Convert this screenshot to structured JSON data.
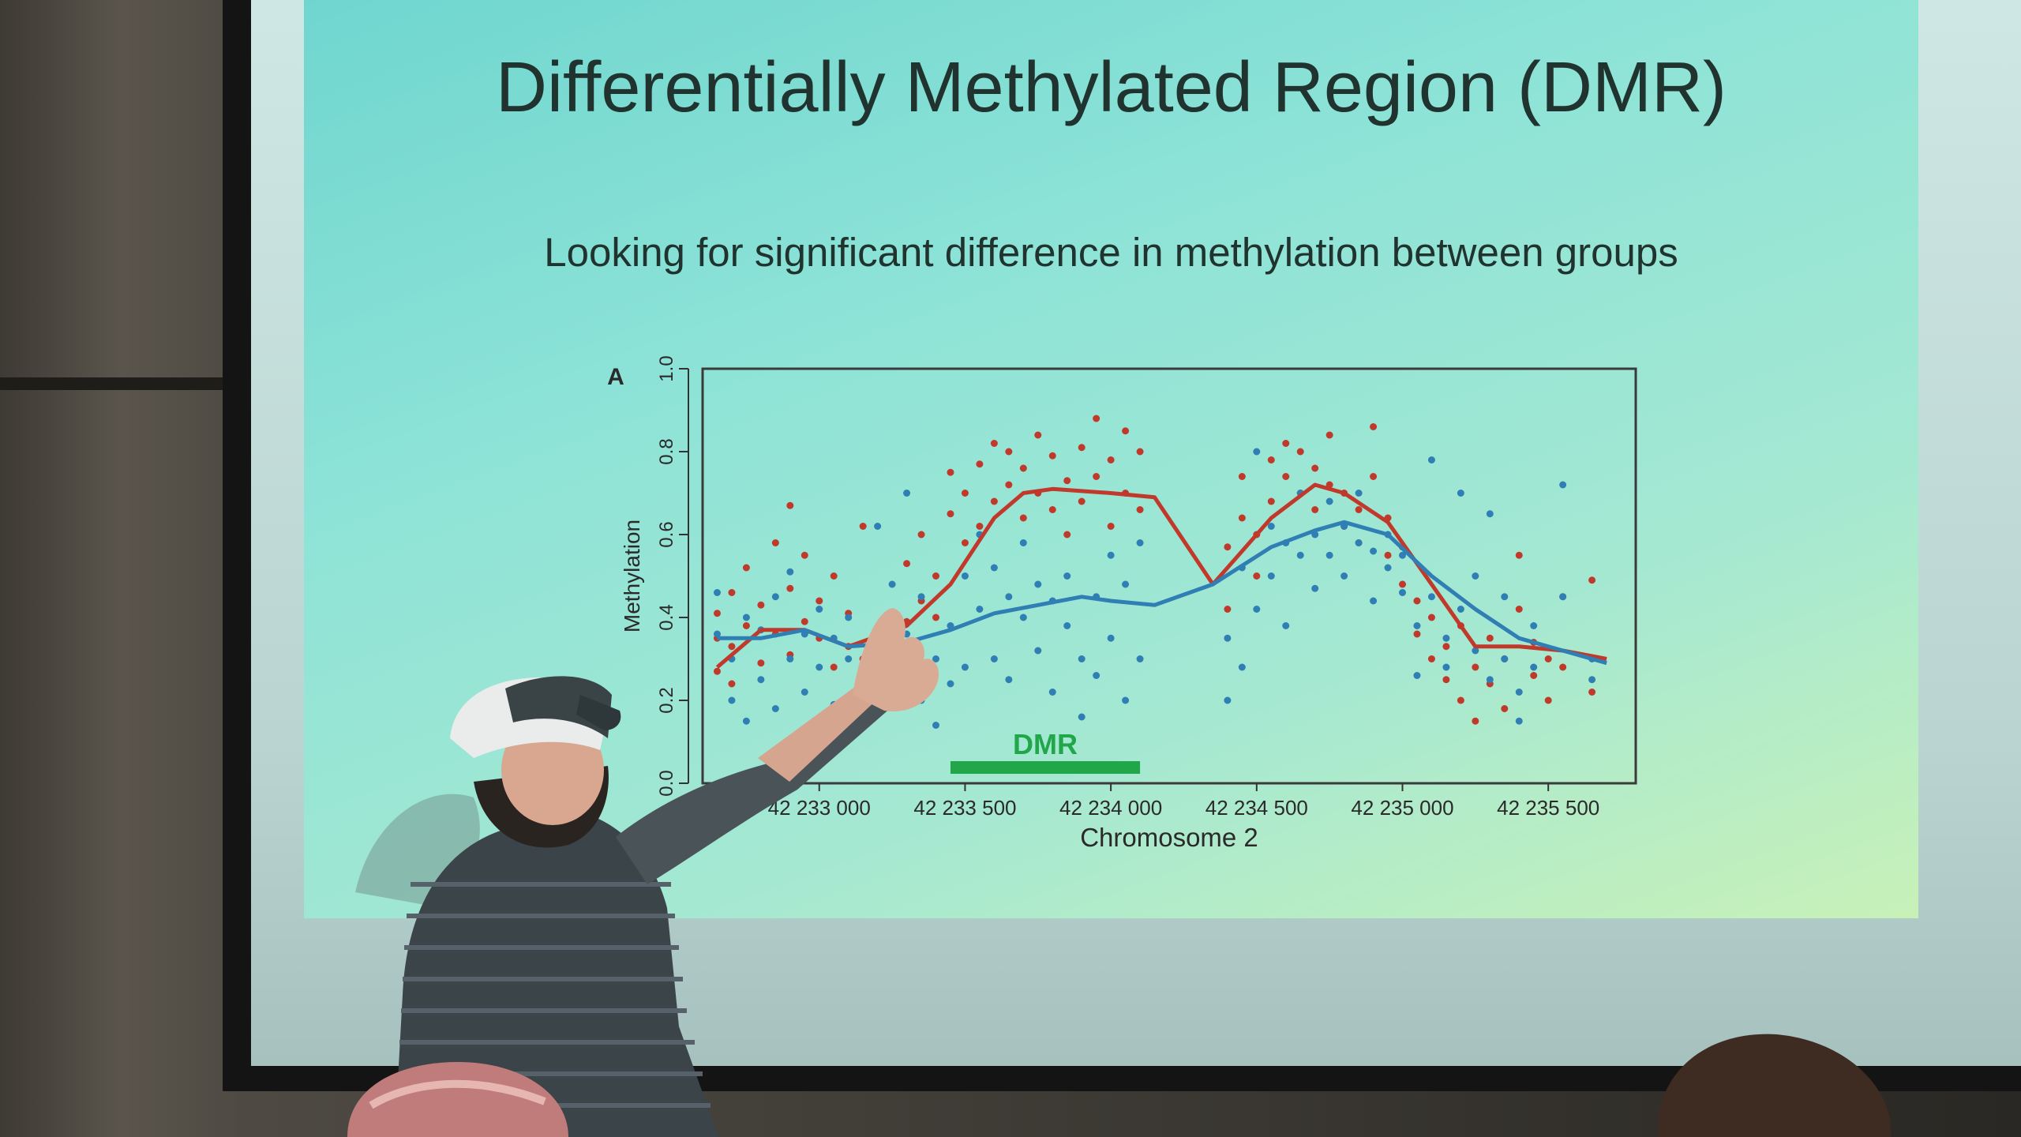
{
  "slide": {
    "title": "Differentially Methylated Region (DMR)",
    "subtitle": "Looking for significant difference in methylation between groups"
  },
  "chart_data": {
    "type": "scatter",
    "panel_label": "A",
    "xlabel": "Chromosome 2",
    "ylabel": "Methylation",
    "xlim": [
      42232600,
      42235800
    ],
    "ylim": [
      0,
      1
    ],
    "x_ticks": [
      {
        "value": 42233000,
        "label": "42 233 000"
      },
      {
        "value": 42233500,
        "label": "42 233 500"
      },
      {
        "value": 42234000,
        "label": "42 234 000"
      },
      {
        "value": 42234500,
        "label": "42 234 500"
      },
      {
        "value": 42235000,
        "label": "42 235 000"
      },
      {
        "value": 42235500,
        "label": "42 235 500"
      }
    ],
    "y_ticks": [
      {
        "value": 0,
        "label": "0.0"
      },
      {
        "value": 0.2,
        "label": "0.2"
      },
      {
        "value": 0.4,
        "label": "0.4"
      },
      {
        "value": 0.6,
        "label": "0.6"
      },
      {
        "value": 0.8,
        "label": "0.8"
      },
      {
        "value": 1,
        "label": "1.0"
      }
    ],
    "grid": false,
    "series": [
      {
        "color": "#c0392b",
        "smooth_x": [
          42232650,
          42232800,
          42232950,
          42233100,
          42233300,
          42233450,
          42233600,
          42233700,
          42233800,
          42234000,
          42234150,
          42234350,
          42234550,
          42234700,
          42234800,
          42234950,
          42235100,
          42235250,
          42235400,
          42235550,
          42235700
        ],
        "smooth_y": [
          0.28,
          0.37,
          0.37,
          0.33,
          0.38,
          0.48,
          0.64,
          0.7,
          0.71,
          0.7,
          0.69,
          0.48,
          0.64,
          0.72,
          0.7,
          0.63,
          0.48,
          0.33,
          0.33,
          0.32,
          0.3
        ],
        "points": [
          [
            42232650,
            0.27
          ],
          [
            42232650,
            0.35
          ],
          [
            42232650,
            0.41
          ],
          [
            42232700,
            0.24
          ],
          [
            42232700,
            0.33
          ],
          [
            42232700,
            0.46
          ],
          [
            42232750,
            0.38
          ],
          [
            42232750,
            0.52
          ],
          [
            42232800,
            0.29
          ],
          [
            42232800,
            0.43
          ],
          [
            42232850,
            0.36
          ],
          [
            42232850,
            0.58
          ],
          [
            42232900,
            0.31
          ],
          [
            42232900,
            0.47
          ],
          [
            42232900,
            0.67
          ],
          [
            42232950,
            0.39
          ],
          [
            42232950,
            0.55
          ],
          [
            42233000,
            0.35
          ],
          [
            42233000,
            0.44
          ],
          [
            42233050,
            0.28
          ],
          [
            42233050,
            0.5
          ],
          [
            42233100,
            0.33
          ],
          [
            42233100,
            0.41
          ],
          [
            42233150,
            0.62
          ],
          [
            42233150,
            0.3
          ],
          [
            42233250,
            0.26
          ],
          [
            42233300,
            0.39
          ],
          [
            42233300,
            0.53
          ],
          [
            42233350,
            0.44
          ],
          [
            42233350,
            0.6
          ],
          [
            42233400,
            0.4
          ],
          [
            42233400,
            0.5
          ],
          [
            42233450,
            0.65
          ],
          [
            42233450,
            0.75
          ],
          [
            42233500,
            0.58
          ],
          [
            42233500,
            0.7
          ],
          [
            42233550,
            0.77
          ],
          [
            42233550,
            0.62
          ],
          [
            42233600,
            0.82
          ],
          [
            42233600,
            0.68
          ],
          [
            42233650,
            0.72
          ],
          [
            42233650,
            0.8
          ],
          [
            42233700,
            0.64
          ],
          [
            42233700,
            0.76
          ],
          [
            42233750,
            0.84
          ],
          [
            42233750,
            0.7
          ],
          [
            42233800,
            0.66
          ],
          [
            42233800,
            0.79
          ],
          [
            42233850,
            0.6
          ],
          [
            42233850,
            0.73
          ],
          [
            42233900,
            0.81
          ],
          [
            42233900,
            0.68
          ],
          [
            42233950,
            0.88
          ],
          [
            42233950,
            0.74
          ],
          [
            42234000,
            0.62
          ],
          [
            42234000,
            0.78
          ],
          [
            42234050,
            0.85
          ],
          [
            42234050,
            0.7
          ],
          [
            42234100,
            0.66
          ],
          [
            42234100,
            0.8
          ],
          [
            42234400,
            0.42
          ],
          [
            42234400,
            0.57
          ],
          [
            42234450,
            0.64
          ],
          [
            42234450,
            0.74
          ],
          [
            42234500,
            0.5
          ],
          [
            42234500,
            0.6
          ],
          [
            42234550,
            0.68
          ],
          [
            42234550,
            0.78
          ],
          [
            42234600,
            0.74
          ],
          [
            42234600,
            0.82
          ],
          [
            42234650,
            0.7
          ],
          [
            42234650,
            0.8
          ],
          [
            42234700,
            0.66
          ],
          [
            42234700,
            0.76
          ],
          [
            42234750,
            0.72
          ],
          [
            42234750,
            0.84
          ],
          [
            42234800,
            0.62
          ],
          [
            42234800,
            0.7
          ],
          [
            42234850,
            0.58
          ],
          [
            42234850,
            0.66
          ],
          [
            42234900,
            0.74
          ],
          [
            42234900,
            0.86
          ],
          [
            42234950,
            0.55
          ],
          [
            42234950,
            0.64
          ],
          [
            42235000,
            0.48
          ],
          [
            42235000,
            0.57
          ],
          [
            42235050,
            0.44
          ],
          [
            42235050,
            0.36
          ],
          [
            42235100,
            0.4
          ],
          [
            42235100,
            0.3
          ],
          [
            42235150,
            0.33
          ],
          [
            42235150,
            0.25
          ],
          [
            42235200,
            0.2
          ],
          [
            42235200,
            0.38
          ],
          [
            42235250,
            0.28
          ],
          [
            42235250,
            0.15
          ],
          [
            42235300,
            0.35
          ],
          [
            42235300,
            0.24
          ],
          [
            42235350,
            0.3
          ],
          [
            42235350,
            0.18
          ],
          [
            42235400,
            0.55
          ],
          [
            42235400,
            0.42
          ],
          [
            42235450,
            0.26
          ],
          [
            42235450,
            0.34
          ],
          [
            42235500,
            0.3
          ],
          [
            42235500,
            0.2
          ],
          [
            42235550,
            0.45
          ],
          [
            42235550,
            0.28
          ],
          [
            42235650,
            0.49
          ],
          [
            42235650,
            0.22
          ]
        ]
      },
      {
        "color": "#2f7fb5",
        "smooth_x": [
          42232650,
          42232800,
          42232950,
          42233100,
          42233300,
          42233450,
          42233600,
          42233750,
          42233900,
          42234000,
          42234150,
          42234350,
          42234550,
          42234700,
          42234800,
          42234950,
          42235100,
          42235250,
          42235400,
          42235550,
          42235700
        ],
        "smooth_y": [
          0.35,
          0.35,
          0.37,
          0.33,
          0.34,
          0.37,
          0.41,
          0.43,
          0.45,
          0.44,
          0.43,
          0.48,
          0.57,
          0.61,
          0.63,
          0.6,
          0.5,
          0.42,
          0.35,
          0.32,
          0.29
        ],
        "points": [
          [
            42232650,
            0.36
          ],
          [
            42232650,
            0.46
          ],
          [
            42232700,
            0.2
          ],
          [
            42232700,
            0.3
          ],
          [
            42232750,
            0.15
          ],
          [
            42232750,
            0.4
          ],
          [
            42232800,
            0.25
          ],
          [
            42232800,
            0.37
          ],
          [
            42232850,
            0.18
          ],
          [
            42232850,
            0.45
          ],
          [
            42232900,
            0.3
          ],
          [
            42232900,
            0.51
          ],
          [
            42232950,
            0.22
          ],
          [
            42232950,
            0.36
          ],
          [
            42233000,
            0.42
          ],
          [
            42233000,
            0.28
          ],
          [
            42233050,
            0.35
          ],
          [
            42233050,
            0.19
          ],
          [
            42233100,
            0.3
          ],
          [
            42233100,
            0.4
          ],
          [
            42233200,
            0.62
          ],
          [
            42233250,
            0.48
          ],
          [
            42233300,
            0.7
          ],
          [
            42233300,
            0.36
          ],
          [
            42233350,
            0.2
          ],
          [
            42233350,
            0.45
          ],
          [
            42233400,
            0.14
          ],
          [
            42233400,
            0.3
          ],
          [
            42233450,
            0.38
          ],
          [
            42233450,
            0.24
          ],
          [
            42233500,
            0.5
          ],
          [
            42233500,
            0.28
          ],
          [
            42233550,
            0.42
          ],
          [
            42233550,
            0.6
          ],
          [
            42233600,
            0.3
          ],
          [
            42233600,
            0.52
          ],
          [
            42233650,
            0.25
          ],
          [
            42233650,
            0.45
          ],
          [
            42233700,
            0.4
          ],
          [
            42233700,
            0.58
          ],
          [
            42233750,
            0.32
          ],
          [
            42233750,
            0.48
          ],
          [
            42233800,
            0.22
          ],
          [
            42233800,
            0.44
          ],
          [
            42233850,
            0.5
          ],
          [
            42233850,
            0.38
          ],
          [
            42233900,
            0.16
          ],
          [
            42233900,
            0.3
          ],
          [
            42233950,
            0.45
          ],
          [
            42233950,
            0.26
          ],
          [
            42234000,
            0.55
          ],
          [
            42234000,
            0.35
          ],
          [
            42234050,
            0.2
          ],
          [
            42234050,
            0.48
          ],
          [
            42234100,
            0.3
          ],
          [
            42234100,
            0.58
          ],
          [
            42234400,
            0.2
          ],
          [
            42234400,
            0.35
          ],
          [
            42234450,
            0.28
          ],
          [
            42234450,
            0.52
          ],
          [
            42234500,
            0.8
          ],
          [
            42234500,
            0.42
          ],
          [
            42234550,
            0.5
          ],
          [
            42234550,
            0.62
          ],
          [
            42234600,
            0.38
          ],
          [
            42234600,
            0.58
          ],
          [
            42234650,
            0.55
          ],
          [
            42234650,
            0.7
          ],
          [
            42234700,
            0.6
          ],
          [
            42234700,
            0.47
          ],
          [
            42234750,
            0.68
          ],
          [
            42234750,
            0.55
          ],
          [
            42234800,
            0.5
          ],
          [
            42234800,
            0.62
          ],
          [
            42234850,
            0.58
          ],
          [
            42234850,
            0.7
          ],
          [
            42234900,
            0.44
          ],
          [
            42234900,
            0.56
          ],
          [
            42234950,
            0.6
          ],
          [
            42234950,
            0.52
          ],
          [
            42235000,
            0.46
          ],
          [
            42235000,
            0.55
          ],
          [
            42235050,
            0.38
          ],
          [
            42235050,
            0.26
          ],
          [
            42235100,
            0.78
          ],
          [
            42235100,
            0.45
          ],
          [
            42235150,
            0.35
          ],
          [
            42235150,
            0.28
          ],
          [
            42235200,
            0.7
          ],
          [
            42235200,
            0.42
          ],
          [
            42235250,
            0.5
          ],
          [
            42235250,
            0.32
          ],
          [
            42235300,
            0.65
          ],
          [
            42235300,
            0.25
          ],
          [
            42235350,
            0.45
          ],
          [
            42235350,
            0.3
          ],
          [
            42235400,
            0.22
          ],
          [
            42235400,
            0.15
          ],
          [
            42235450,
            0.38
          ],
          [
            42235450,
            0.28
          ],
          [
            42235550,
            0.72
          ],
          [
            42235550,
            0.45
          ],
          [
            42235650,
            0.3
          ],
          [
            42235650,
            0.25
          ]
        ]
      }
    ],
    "annotations": [
      {
        "label": "DMR",
        "x_start": 42233450,
        "x_end": 42234100,
        "color": "#22a64a"
      }
    ]
  }
}
